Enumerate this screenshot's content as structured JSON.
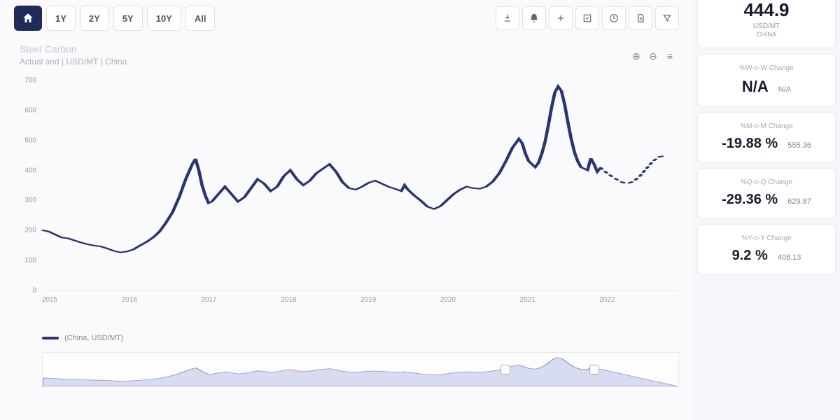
{
  "ranges": [
    "1Y",
    "2Y",
    "5Y",
    "10Y",
    "All"
  ],
  "chart": {
    "title": "Steel Carbon",
    "subtitle": "Actual and | USD/MT | China",
    "type": "line",
    "ylim": [
      0,
      700
    ],
    "ytick_step": 100,
    "yticks": [
      0,
      100,
      200,
      300,
      400,
      500,
      600,
      700
    ],
    "xticks": [
      "2015",
      "2016",
      "2017",
      "2018",
      "2019",
      "2020",
      "2021",
      "2022"
    ],
    "line_color": "#2a3570",
    "line_width": 2,
    "grid_color": "#f0f0f5",
    "background_color": "#fafafc",
    "series": {
      "solid": [
        [
          0,
          200
        ],
        [
          4,
          195
        ],
        [
          8,
          185
        ],
        [
          12,
          175
        ],
        [
          16,
          172
        ],
        [
          20,
          165
        ],
        [
          24,
          158
        ],
        [
          28,
          152
        ],
        [
          32,
          148
        ],
        [
          36,
          145
        ],
        [
          40,
          138
        ],
        [
          44,
          130
        ],
        [
          48,
          125
        ],
        [
          52,
          128
        ],
        [
          56,
          135
        ],
        [
          60,
          148
        ],
        [
          64,
          160
        ],
        [
          68,
          175
        ],
        [
          72,
          195
        ],
        [
          76,
          225
        ],
        [
          80,
          260
        ],
        [
          84,
          310
        ],
        [
          88,
          370
        ],
        [
          92,
          420
        ],
        [
          94,
          438
        ],
        [
          96,
          400
        ],
        [
          98,
          350
        ],
        [
          100,
          315
        ],
        [
          102,
          290
        ],
        [
          104,
          295
        ],
        [
          108,
          320
        ],
        [
          112,
          345
        ],
        [
          116,
          320
        ],
        [
          120,
          295
        ],
        [
          124,
          310
        ],
        [
          128,
          340
        ],
        [
          132,
          370
        ],
        [
          136,
          355
        ],
        [
          140,
          330
        ],
        [
          144,
          345
        ],
        [
          148,
          380
        ],
        [
          152,
          400
        ],
        [
          156,
          370
        ],
        [
          160,
          350
        ],
        [
          164,
          365
        ],
        [
          168,
          390
        ],
        [
          172,
          405
        ],
        [
          176,
          420
        ],
        [
          180,
          395
        ],
        [
          184,
          360
        ],
        [
          188,
          340
        ],
        [
          192,
          335
        ],
        [
          196,
          345
        ],
        [
          200,
          358
        ],
        [
          204,
          365
        ],
        [
          208,
          355
        ],
        [
          212,
          345
        ],
        [
          216,
          338
        ],
        [
          220,
          330
        ],
        [
          222,
          350
        ],
        [
          224,
          335
        ],
        [
          228,
          315
        ],
        [
          232,
          298
        ],
        [
          236,
          278
        ],
        [
          240,
          270
        ],
        [
          244,
          280
        ],
        [
          248,
          300
        ],
        [
          252,
          320
        ],
        [
          256,
          335
        ],
        [
          260,
          345
        ],
        [
          264,
          340
        ],
        [
          268,
          338
        ],
        [
          272,
          345
        ],
        [
          276,
          362
        ],
        [
          280,
          390
        ],
        [
          284,
          430
        ],
        [
          288,
          475
        ],
        [
          292,
          505
        ],
        [
          294,
          490
        ],
        [
          296,
          455
        ],
        [
          298,
          430
        ],
        [
          300,
          420
        ],
        [
          302,
          410
        ],
        [
          304,
          425
        ],
        [
          306,
          455
        ],
        [
          308,
          495
        ],
        [
          310,
          550
        ],
        [
          312,
          610
        ],
        [
          314,
          660
        ],
        [
          316,
          680
        ],
        [
          318,
          665
        ],
        [
          320,
          620
        ],
        [
          322,
          560
        ],
        [
          324,
          505
        ],
        [
          326,
          460
        ],
        [
          328,
          430
        ],
        [
          330,
          410
        ],
        [
          334,
          400
        ],
        [
          336,
          440
        ],
        [
          338,
          420
        ],
        [
          340,
          395
        ],
        [
          342,
          408
        ]
      ],
      "dotted": [
        [
          342,
          408
        ],
        [
          346,
          390
        ],
        [
          350,
          375
        ],
        [
          354,
          362
        ],
        [
          358,
          355
        ],
        [
          362,
          362
        ],
        [
          366,
          380
        ],
        [
          370,
          405
        ],
        [
          374,
          430
        ],
        [
          378,
          445
        ],
        [
          382,
          448
        ]
      ]
    },
    "legend": "(China, USD/MT)"
  },
  "range_selector": {
    "fill_color": "#d8dcf0",
    "stroke_color": "#8a92c8",
    "handle_left_pct": 72,
    "handle_right_pct": 86
  },
  "price_card": {
    "value": "444.9",
    "unit": "USD/MT",
    "location": "CHINA"
  },
  "changes": [
    {
      "label": "%W-o-W Change",
      "pct": "N/A",
      "ref": "N/A"
    },
    {
      "label": "%M-o-M Change",
      "pct": "-19.88 %",
      "ref": "555.36"
    },
    {
      "label": "%Q-o-Q Change",
      "pct": "-29.36 %",
      "ref": "629.87"
    },
    {
      "label": "%Y-o-Y Change",
      "pct": "9.2  %",
      "ref": "408.13"
    }
  ],
  "colors": {
    "accent": "#1e2a5a",
    "line": "#2a3570",
    "text_primary": "#1a1a2e",
    "text_muted": "#999",
    "border": "#e0e0e8",
    "card_bg": "#ffffff",
    "page_bg": "#fafafc"
  }
}
